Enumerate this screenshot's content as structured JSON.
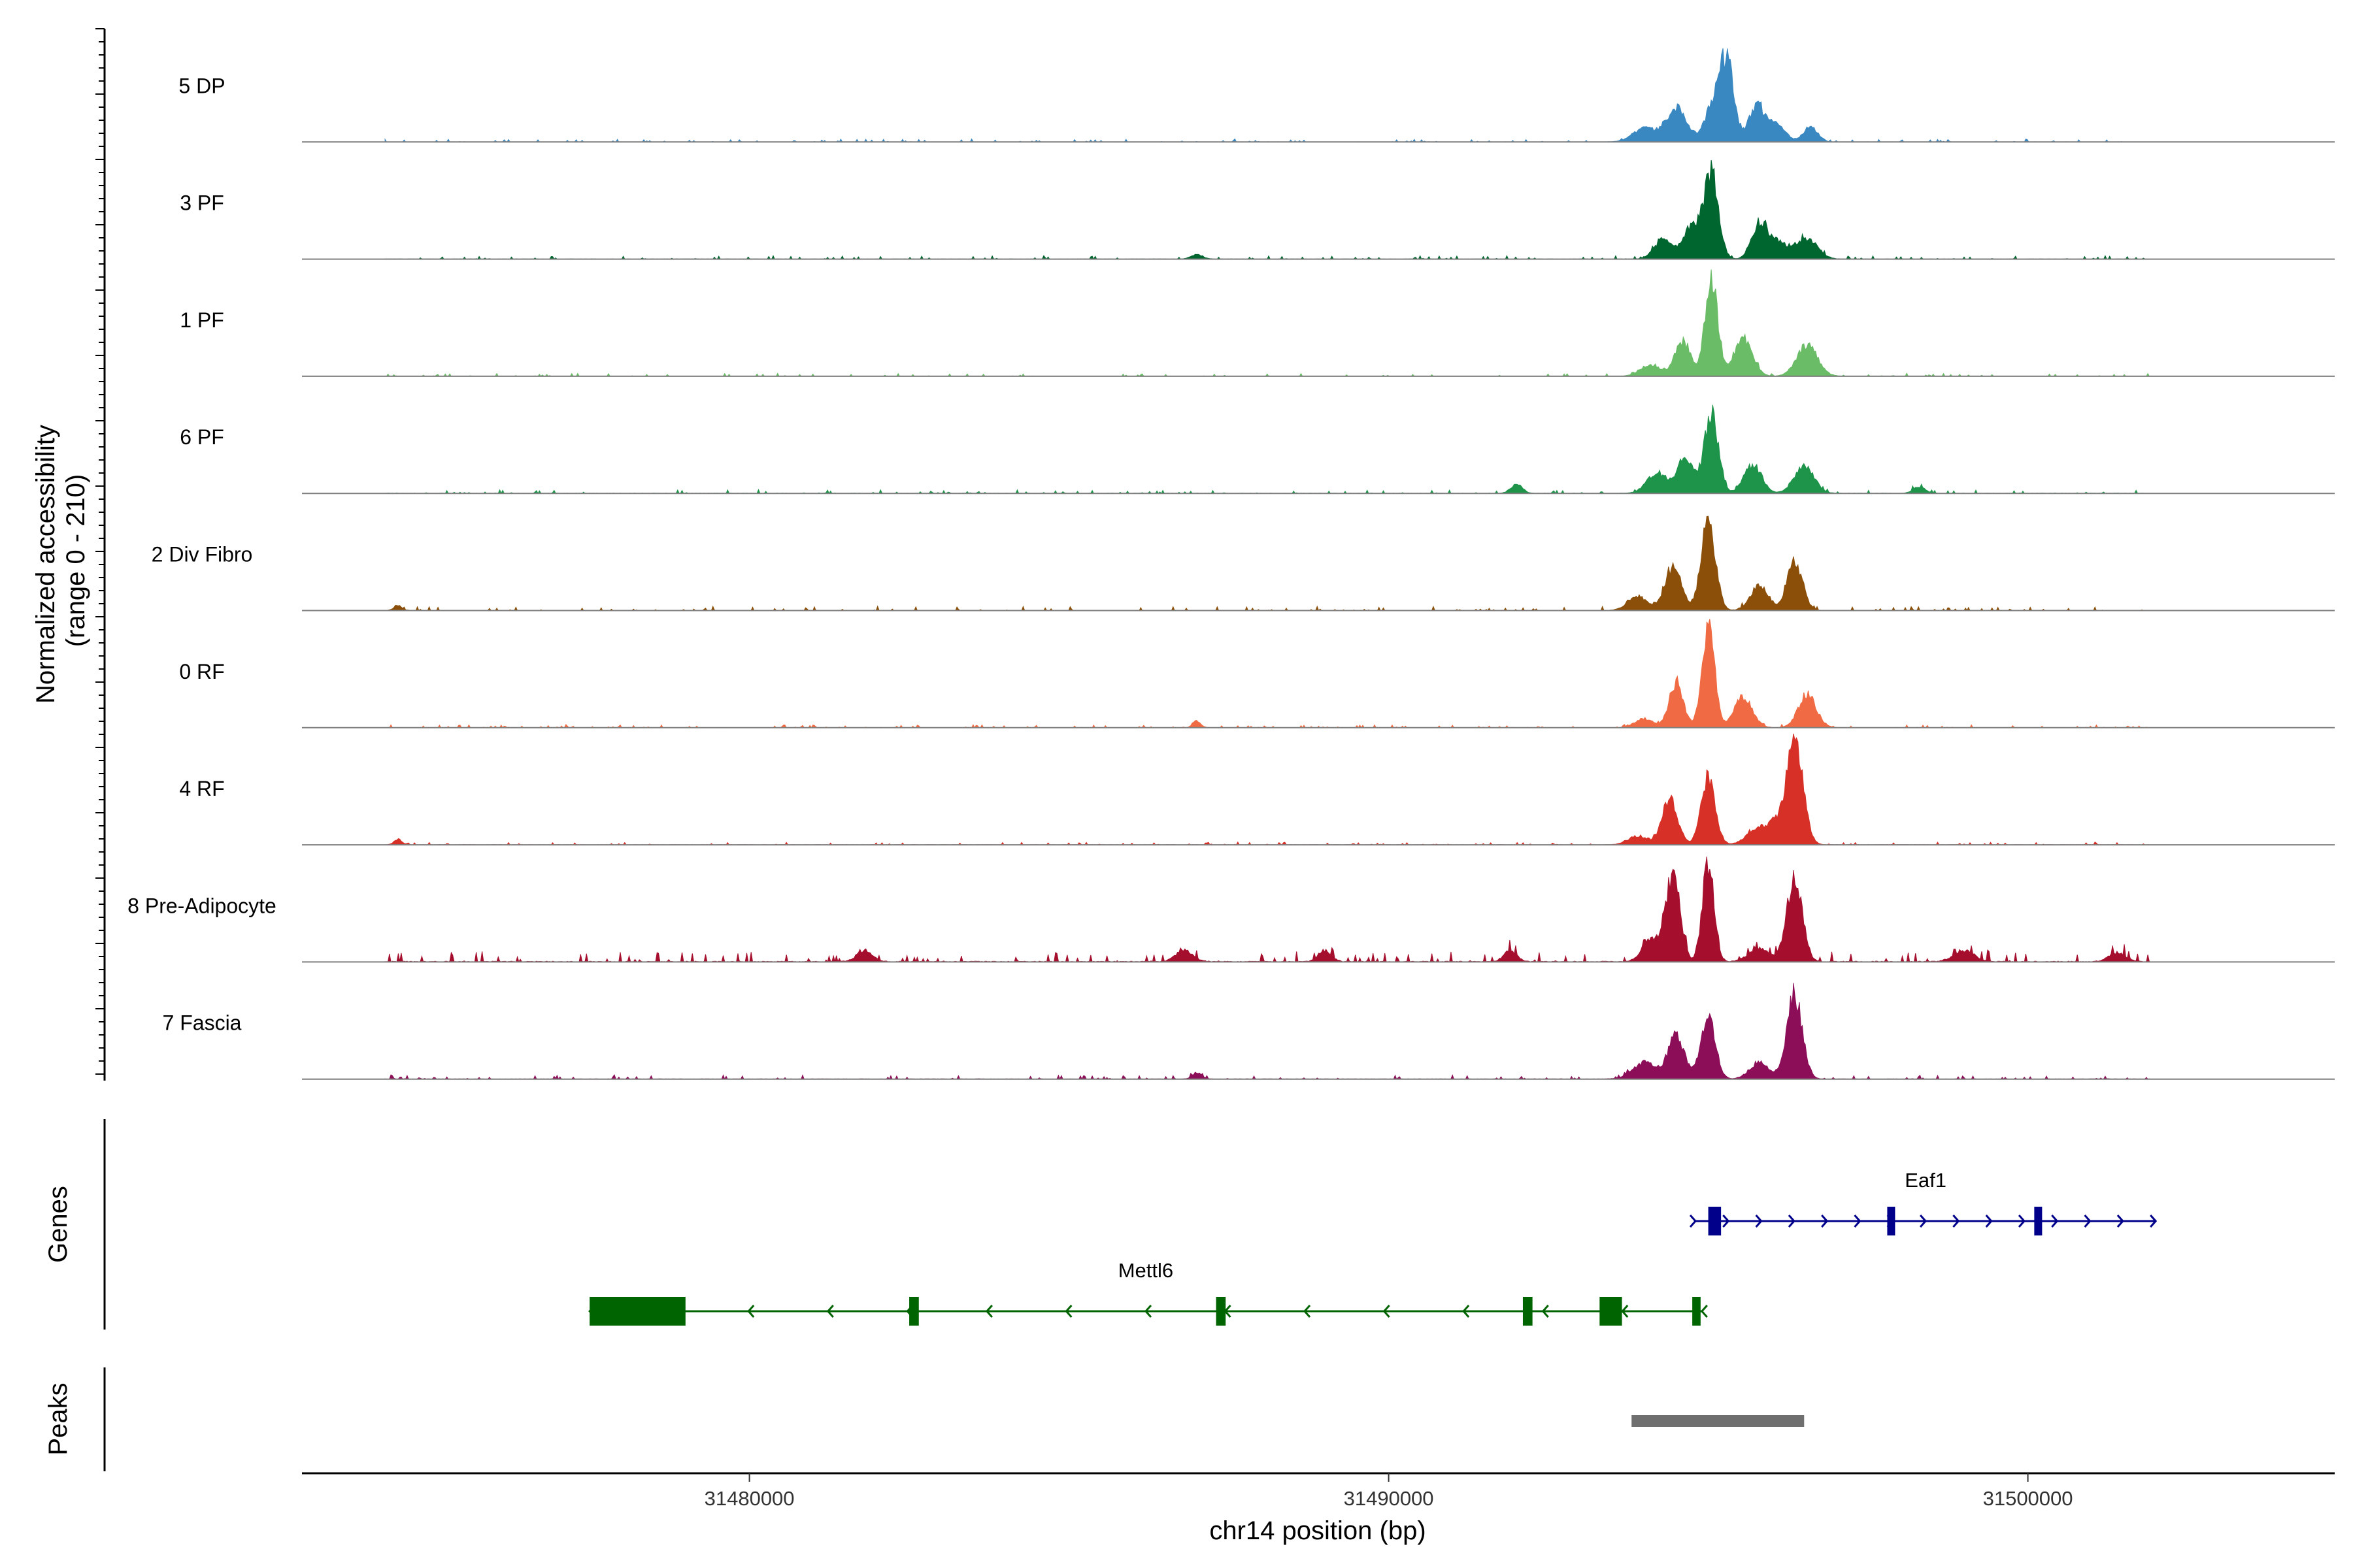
{
  "chart_data": {
    "type": "coverage",
    "x_range": [
      31473000,
      31504800
    ],
    "y_range_text": "(range 0 - 210)",
    "ylabel_line1": "Normalized accessibility",
    "xlabel": "chr14 position (bp)",
    "x_ticks": [
      31480000,
      31490000,
      31500000
    ],
    "x_tick_labels": [
      "31480000",
      "31490000",
      "31500000"
    ],
    "genes_label": "Genes",
    "peaks_label": "Peaks",
    "tracks": [
      {
        "name": "5 DP",
        "color": "#3a88c2",
        "noise": 0.05,
        "peaks": [
          {
            "pos": 31495300,
            "h": 0.62,
            "w": 110
          },
          {
            "pos": 31495100,
            "h": 0.35,
            "w": 140
          },
          {
            "pos": 31494500,
            "h": 0.3,
            "w": 160
          },
          {
            "pos": 31494000,
            "h": 0.12,
            "w": 180
          },
          {
            "pos": 31495750,
            "h": 0.3,
            "w": 120
          },
          {
            "pos": 31496050,
            "h": 0.15,
            "w": 150
          },
          {
            "pos": 31496600,
            "h": 0.14,
            "w": 110
          }
        ]
      },
      {
        "name": "3 PF",
        "color": "#00662f",
        "noise": 0.06,
        "peaks": [
          {
            "pos": 31495050,
            "h": 0.78,
            "w": 110
          },
          {
            "pos": 31494750,
            "h": 0.3,
            "w": 130
          },
          {
            "pos": 31494300,
            "h": 0.18,
            "w": 140
          },
          {
            "pos": 31495800,
            "h": 0.32,
            "w": 120
          },
          {
            "pos": 31496100,
            "h": 0.15,
            "w": 150
          },
          {
            "pos": 31496550,
            "h": 0.18,
            "w": 160
          },
          {
            "pos": 31487000,
            "h": 0.04,
            "w": 90
          }
        ]
      },
      {
        "name": "1 PF",
        "color": "#6abd66",
        "noise": 0.05,
        "peaks": [
          {
            "pos": 31495050,
            "h": 0.85,
            "w": 100
          },
          {
            "pos": 31494600,
            "h": 0.32,
            "w": 120
          },
          {
            "pos": 31495550,
            "h": 0.35,
            "w": 140
          },
          {
            "pos": 31496550,
            "h": 0.28,
            "w": 160
          },
          {
            "pos": 31494100,
            "h": 0.1,
            "w": 160
          }
        ]
      },
      {
        "name": "6 PF",
        "color": "#1d944a",
        "noise": 0.06,
        "peaks": [
          {
            "pos": 31495050,
            "h": 0.7,
            "w": 110
          },
          {
            "pos": 31494650,
            "h": 0.32,
            "w": 130
          },
          {
            "pos": 31494200,
            "h": 0.18,
            "w": 160
          },
          {
            "pos": 31495700,
            "h": 0.25,
            "w": 140
          },
          {
            "pos": 31496500,
            "h": 0.26,
            "w": 150
          },
          {
            "pos": 31492000,
            "h": 0.08,
            "w": 90
          },
          {
            "pos": 31498300,
            "h": 0.06,
            "w": 90
          }
        ]
      },
      {
        "name": "2 Div Fibro",
        "color": "#8b4f09",
        "noise": 0.07,
        "peaks": [
          {
            "pos": 31495000,
            "h": 0.82,
            "w": 110
          },
          {
            "pos": 31494450,
            "h": 0.4,
            "w": 130
          },
          {
            "pos": 31495800,
            "h": 0.22,
            "w": 140
          },
          {
            "pos": 31496350,
            "h": 0.45,
            "w": 120
          },
          {
            "pos": 31493900,
            "h": 0.12,
            "w": 160
          },
          {
            "pos": 31474500,
            "h": 0.05,
            "w": 60
          }
        ]
      },
      {
        "name": "0 RF",
        "color": "#f06b43",
        "noise": 0.05,
        "peaks": [
          {
            "pos": 31495000,
            "h": 0.88,
            "w": 100
          },
          {
            "pos": 31494500,
            "h": 0.4,
            "w": 110
          },
          {
            "pos": 31495550,
            "h": 0.28,
            "w": 140
          },
          {
            "pos": 31496550,
            "h": 0.3,
            "w": 140
          },
          {
            "pos": 31487000,
            "h": 0.06,
            "w": 60
          },
          {
            "pos": 31494000,
            "h": 0.08,
            "w": 140
          }
        ]
      },
      {
        "name": "4 RF",
        "color": "#d73027",
        "noise": 0.05,
        "peaks": [
          {
            "pos": 31495000,
            "h": 0.6,
            "w": 110
          },
          {
            "pos": 31494400,
            "h": 0.42,
            "w": 120
          },
          {
            "pos": 31496350,
            "h": 0.95,
            "w": 130
          },
          {
            "pos": 31495800,
            "h": 0.15,
            "w": 180
          },
          {
            "pos": 31496050,
            "h": 0.12,
            "w": 120
          },
          {
            "pos": 31493900,
            "h": 0.08,
            "w": 150
          },
          {
            "pos": 31474500,
            "h": 0.05,
            "w": 60
          }
        ]
      },
      {
        "name": "8 Pre-Adipocyte",
        "color": "#a50f2d",
        "noise": 0.18,
        "peaks": [
          {
            "pos": 31494450,
            "h": 0.8,
            "w": 110
          },
          {
            "pos": 31495000,
            "h": 0.9,
            "w": 90
          },
          {
            "pos": 31496350,
            "h": 0.75,
            "w": 120
          },
          {
            "pos": 31494100,
            "h": 0.2,
            "w": 130
          },
          {
            "pos": 31495800,
            "h": 0.12,
            "w": 160
          },
          {
            "pos": 31481800,
            "h": 0.1,
            "w": 120
          },
          {
            "pos": 31486800,
            "h": 0.1,
            "w": 130
          },
          {
            "pos": 31489000,
            "h": 0.1,
            "w": 100
          },
          {
            "pos": 31491900,
            "h": 0.1,
            "w": 100
          },
          {
            "pos": 31499000,
            "h": 0.1,
            "w": 160
          },
          {
            "pos": 31501400,
            "h": 0.08,
            "w": 130
          }
        ]
      },
      {
        "name": "7 Fascia",
        "color": "#8c0d58",
        "noise": 0.07,
        "peaks": [
          {
            "pos": 31495000,
            "h": 0.58,
            "w": 110
          },
          {
            "pos": 31494500,
            "h": 0.38,
            "w": 130
          },
          {
            "pos": 31494000,
            "h": 0.15,
            "w": 180
          },
          {
            "pos": 31496350,
            "h": 0.75,
            "w": 120
          },
          {
            "pos": 31495800,
            "h": 0.15,
            "w": 150
          },
          {
            "pos": 31487000,
            "h": 0.06,
            "w": 70
          }
        ]
      }
    ],
    "genes": [
      {
        "name": "Eaf1",
        "color": "#00008b",
        "strand": "+",
        "start": 31494800,
        "end": 31502000,
        "exons": [
          [
            31495000,
            31495200
          ],
          [
            31497800,
            31497900
          ],
          [
            31500100,
            31500200
          ]
        ]
      },
      {
        "name": "Mettl6",
        "color": "#006400",
        "strand": "-",
        "start": 31477500,
        "end": 31494900,
        "exons": [
          [
            31477500,
            31479000
          ],
          [
            31482500,
            31482650
          ],
          [
            31487300,
            31487450
          ],
          [
            31492100,
            31492250
          ],
          [
            31493300,
            31493650
          ],
          [
            31494750,
            31494880
          ]
        ]
      }
    ],
    "peaks": [
      {
        "start": 31493800,
        "end": 31496500
      }
    ]
  }
}
